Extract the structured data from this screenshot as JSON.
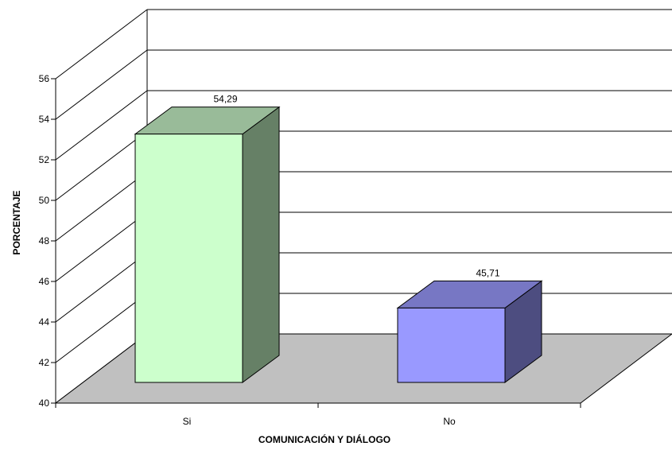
{
  "chart_data": {
    "type": "bar",
    "title": "",
    "xlabel": "COMUNICACIÓN Y DIÁLOGO",
    "ylabel": "PORCENTAJE",
    "ylim": [
      40,
      56
    ],
    "yticks": [
      40,
      42,
      44,
      46,
      48,
      50,
      52,
      54,
      56
    ],
    "ytick_labels": [
      "40",
      "42",
      "44",
      "46",
      "48",
      "50",
      "52",
      "54",
      "56"
    ],
    "categories": [
      "Si",
      "No"
    ],
    "values": [
      54.29,
      45.71
    ],
    "data_labels": [
      "54,29",
      "45,71"
    ],
    "grid": true,
    "legend": "none",
    "style": "3d-bar",
    "colors": {
      "bar_si_front": "#ccffcc",
      "bar_si_top": "#99bb99",
      "bar_si_side": "#668066",
      "bar_no_front": "#9999ff",
      "bar_no_top": "#7777c4",
      "bar_no_side": "#4d4d80",
      "floor": "#c0c0c0"
    }
  }
}
